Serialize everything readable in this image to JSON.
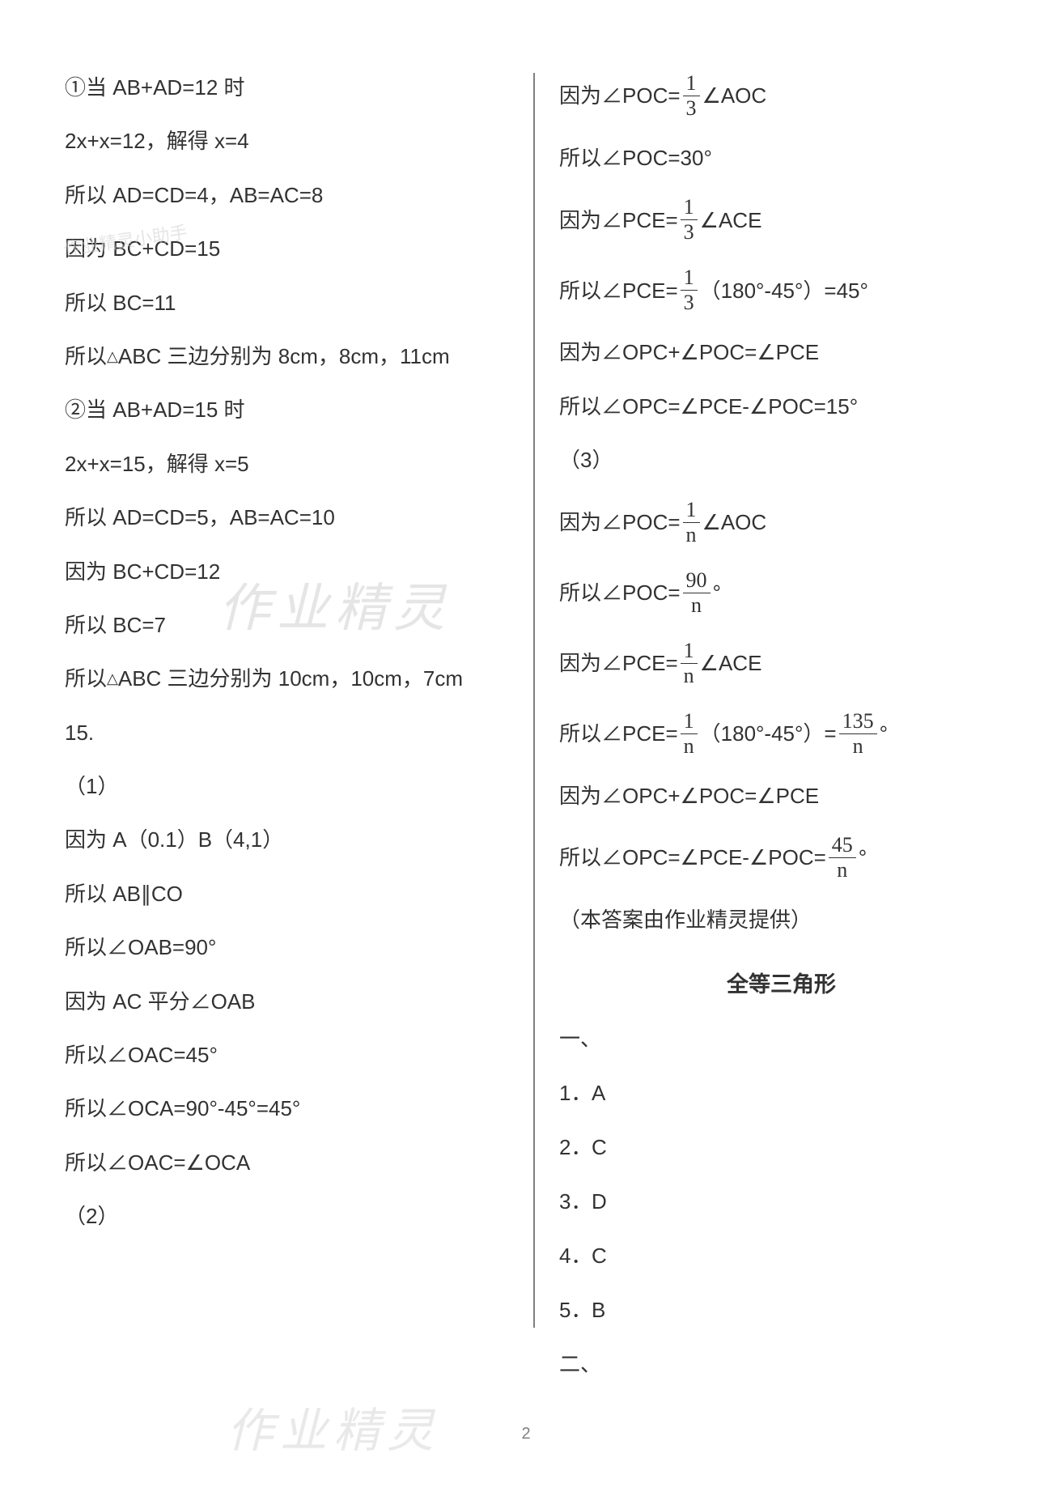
{
  "col_left": {
    "l1": "①当 AB+AD=12 时",
    "l2": "2x+x=12，解得 x=4",
    "l3": "所以 AD=CD=4，AB=AC=8",
    "l4": "因为 BC+CD=15",
    "l5": "所以 BC=11",
    "l6_a": "所以",
    "l6_b": "ABC 三边分别为 8cm，8cm，11cm",
    "l7": "②当 AB+AD=15 时",
    "l8": "2x+x=15，解得 x=5",
    "l9": "所以 AD=CD=5，AB=AC=10",
    "l10": "因为 BC+CD=12",
    "l11": "所以 BC=7",
    "l12_a": "所以",
    "l12_b": "ABC 三边分别为 10cm，10cm，7cm",
    "l13": "15.",
    "l14": "（1）",
    "l15": "因为 A（0.1）B（4,1）",
    "l16": "所以 AB∥CO",
    "l17": "所以∠OAB=90°",
    "l18": "因为 AC 平分∠OAB",
    "l19": "所以∠OAC=45°",
    "l20": "所以∠OCA=90°-45°=45°",
    "l21": "所以∠OAC=∠OCA",
    "l22": "（2）"
  },
  "col_right": {
    "r1_a": "因为∠POC=",
    "r1_num": "1",
    "r1_den": "3",
    "r1_b": "∠AOC",
    "r2": "所以∠POC=30°",
    "r3_a": "因为∠PCE=",
    "r3_num": "1",
    "r3_den": "3",
    "r3_b": "∠ACE",
    "r4_a": "所以∠PCE=",
    "r4_num": "1",
    "r4_den": "3",
    "r4_b": "（180°-45°）=45°",
    "r5": "因为∠OPC+∠POC=∠PCE",
    "r6": "所以∠OPC=∠PCE-∠POC=15°",
    "r7": "（3）",
    "r8_a": "因为∠POC=",
    "r8_num": "1",
    "r8_den": "n",
    "r8_b": "∠AOC",
    "r9_a": "所以∠POC=",
    "r9_num": "90",
    "r9_den": "n",
    "r9_b": "°",
    "r10_a": "因为∠PCE=",
    "r10_num": "1",
    "r10_den": "n",
    "r10_b": "∠ACE",
    "r11_a": "所以∠PCE=",
    "r11_num": "1",
    "r11_den": "n",
    "r11_b": "（180°-45°）=",
    "r11_num2": "135",
    "r11_den2": "n",
    "r11_c": "°",
    "r12": "因为∠OPC+∠POC=∠PCE",
    "r13_a": "所以∠OPC=∠PCE-∠POC=",
    "r13_num": "45",
    "r13_den": "n",
    "r13_b": "°",
    "r14": "（本答案由作业精灵提供）",
    "heading": "全等三角形",
    "s1": "一、",
    "q1n": "1．",
    "q1a": "A",
    "q2n": "2．",
    "q2a": "C",
    "q3n": "3．",
    "q3a": "D",
    "q4n": "4．",
    "q4a": "C",
    "q5n": "5．",
    "q5a": "B",
    "s2": "二、"
  },
  "watermarks": {
    "wm1": "作业精灵小助手",
    "wm2": "作业精灵",
    "wm3": "作业精灵"
  },
  "pagenum": "2",
  "triangle": "△"
}
